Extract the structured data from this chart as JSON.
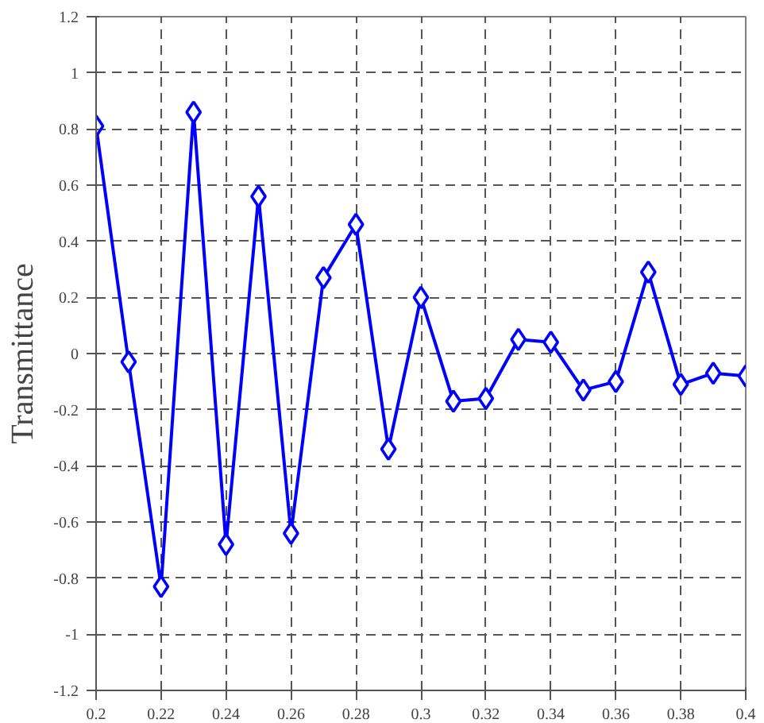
{
  "chart_data": {
    "type": "line",
    "ylabel": "Transmittance",
    "x": [
      0.2,
      0.21,
      0.22,
      0.23,
      0.24,
      0.25,
      0.26,
      0.27,
      0.28,
      0.29,
      0.3,
      0.31,
      0.32,
      0.33,
      0.34,
      0.35,
      0.36,
      0.37,
      0.38,
      0.39,
      0.4
    ],
    "series": [
      {
        "color": "#0000ff",
        "values": [
          0.81,
          -0.03,
          -0.83,
          0.86,
          -0.68,
          0.56,
          -0.64,
          0.27,
          0.46,
          -0.34,
          0.2,
          -0.17,
          -0.16,
          0.05,
          0.04,
          -0.13,
          -0.1,
          0.29,
          -0.11,
          -0.07,
          -0.08
        ]
      }
    ],
    "xlim": [
      0.2,
      0.4
    ],
    "xticks": [
      0.2,
      0.22,
      0.24,
      0.26,
      0.28,
      0.3,
      0.32,
      0.34,
      0.36,
      0.38,
      0.4
    ],
    "ylim": [
      -1.2,
      1.2
    ],
    "yticks": [
      -1.2,
      -1,
      -0.8,
      -0.6,
      -0.4,
      -0.2,
      0,
      0.2,
      0.4,
      0.6,
      0.8,
      1,
      1.2
    ],
    "grid": true,
    "marker": "diamond",
    "line_style": "solid"
  }
}
